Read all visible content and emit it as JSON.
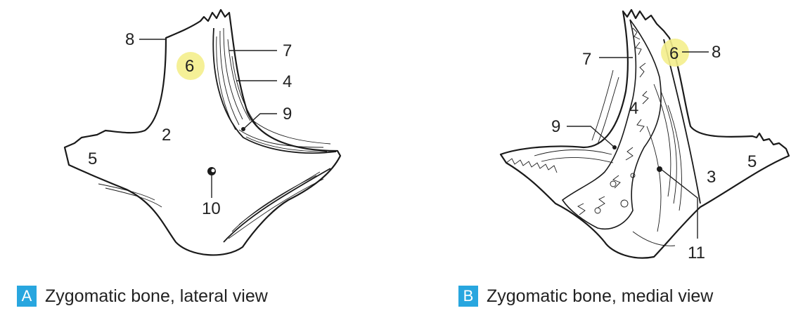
{
  "figure_a": {
    "letter": "A",
    "caption": "Zygomatic bone, lateral view",
    "labels": {
      "l8": "8",
      "l6": "6",
      "l7": "7",
      "l4": "4",
      "l9": "9",
      "l2": "2",
      "l5": "5",
      "l10": "10"
    }
  },
  "figure_b": {
    "letter": "B",
    "caption": "Zygomatic bone, medial view",
    "labels": {
      "l7": "7",
      "l6": "6",
      "l8": "8",
      "l4": "4",
      "l9": "9",
      "l3": "3",
      "l5": "5",
      "l11": "11"
    }
  },
  "colors": {
    "badge": "#28a6df",
    "highlight": "#f4ee8c",
    "ink": "#222222"
  }
}
